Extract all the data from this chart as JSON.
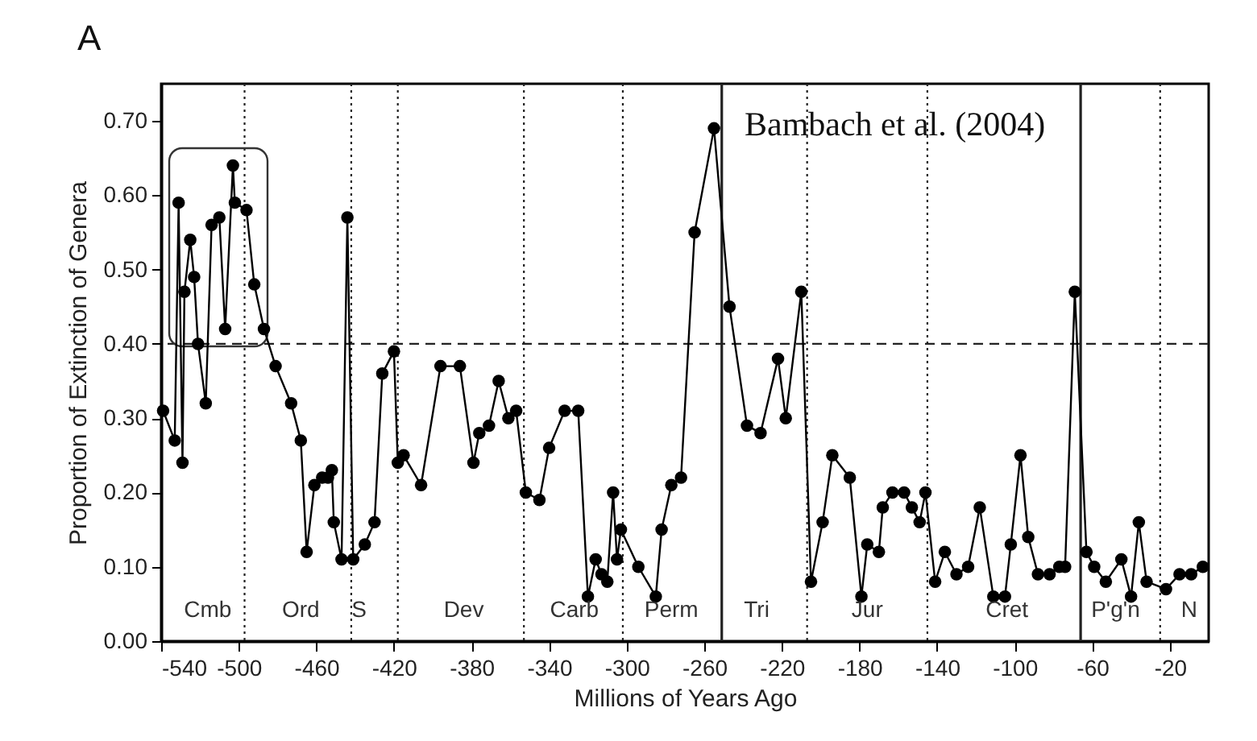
{
  "chart_data": {
    "type": "line",
    "xlabel": "Millions of Years Ago",
    "ylabel": "Proportion of Extinction of Genera",
    "xlim": [
      -540,
      0
    ],
    "xticks": [
      -540,
      -500,
      -460,
      -420,
      -380,
      -340,
      -300,
      -260,
      -220,
      -180,
      -140,
      -100,
      -60,
      -20
    ],
    "ylim": [
      0,
      0.75
    ],
    "yticks": [
      {
        "value": 0,
        "label": "0.00"
      },
      {
        "value": 0.1,
        "label": "0.10"
      },
      {
        "value": 0.2,
        "label": "0.20"
      },
      {
        "value": 0.3,
        "label": "0.30"
      },
      {
        "value": 0.4,
        "label": "0.40"
      },
      {
        "value": 0.5,
        "label": "0.50"
      },
      {
        "value": 0.6,
        "label": "0.60"
      },
      {
        "value": 0.7,
        "label": "0.70"
      }
    ],
    "marker": "circle",
    "line_style": "solid",
    "x": [
      -539,
      -533,
      -531,
      -529,
      -528,
      -525,
      -523,
      -521,
      -517,
      -514,
      -510,
      -507,
      -503,
      -502,
      -496,
      -492,
      -487,
      -481,
      -473,
      -468,
      -465,
      -461,
      -457,
      -454,
      -452,
      -451,
      -447,
      -444,
      -441,
      -435,
      -430,
      -426,
      -420,
      -418,
      -415,
      -406,
      -396,
      -386,
      -379,
      -376,
      -371,
      -366,
      -361,
      -357,
      -352,
      -345,
      -340,
      -332,
      -325,
      -320,
      -316,
      -313,
      -310,
      -307,
      -305,
      -303,
      -294,
      -285,
      -282,
      -277,
      -272,
      -265,
      -255,
      -247,
      -238,
      -231,
      -222,
      -218,
      -210,
      -205,
      -199,
      -194,
      -185,
      -179,
      -176,
      -170,
      -168,
      -163,
      -157,
      -153,
      -149,
      -146,
      -141,
      -136,
      -130,
      -124,
      -118,
      -111,
      -105,
      -102,
      -97,
      -93,
      -88,
      -82,
      -77,
      -74,
      -69,
      -63,
      -59,
      -53,
      -45,
      -40,
      -36,
      -32,
      -22,
      -15,
      -9,
      -3
    ],
    "series": [
      {
        "color": "#000000",
        "values": [
          0.31,
          0.27,
          0.59,
          0.24,
          0.47,
          0.54,
          0.49,
          0.4,
          0.32,
          0.56,
          0.57,
          0.42,
          0.64,
          0.59,
          0.58,
          0.48,
          0.42,
          0.37,
          0.32,
          0.27,
          0.12,
          0.21,
          0.22,
          0.22,
          0.23,
          0.16,
          0.11,
          0.57,
          0.11,
          0.13,
          0.16,
          0.36,
          0.39,
          0.24,
          0.25,
          0.21,
          0.37,
          0.37,
          0.24,
          0.28,
          0.29,
          0.35,
          0.3,
          0.31,
          0.2,
          0.19,
          0.26,
          0.31,
          0.31,
          0.06,
          0.11,
          0.09,
          0.08,
          0.2,
          0.11,
          0.15,
          0.1,
          0.06,
          0.15,
          0.21,
          0.22,
          0.55,
          0.69,
          0.45,
          0.29,
          0.28,
          0.38,
          0.3,
          0.47,
          0.08,
          0.16,
          0.25,
          0.22,
          0.06,
          0.13,
          0.12,
          0.18,
          0.2,
          0.2,
          0.18,
          0.16,
          0.2,
          0.08,
          0.12,
          0.09,
          0.1,
          0.18,
          0.06,
          0.06,
          0.13,
          0.25,
          0.14,
          0.09,
          0.09,
          0.1,
          0.1,
          0.47,
          0.12,
          0.1,
          0.08,
          0.11,
          0.06,
          0.16,
          0.08,
          0.07,
          0.09,
          0.09,
          0.1
        ]
      }
    ],
    "ref_lines": [
      {
        "axis": "y",
        "value": 0.4,
        "line_style": "dashed"
      },
      {
        "axis": "x",
        "value": -497,
        "line_style": "dotted"
      },
      {
        "axis": "x",
        "value": -442,
        "line_style": "dotted"
      },
      {
        "axis": "x",
        "value": -418,
        "line_style": "dotted"
      },
      {
        "axis": "x",
        "value": -353,
        "line_style": "dotted"
      },
      {
        "axis": "x",
        "value": -302,
        "line_style": "dotted"
      },
      {
        "axis": "x",
        "value": -251,
        "line_style": "solid"
      },
      {
        "axis": "x",
        "value": -207,
        "line_style": "dotted"
      },
      {
        "axis": "x",
        "value": -145,
        "line_style": "dotted"
      },
      {
        "axis": "x",
        "value": -66,
        "line_style": "solid"
      },
      {
        "axis": "x",
        "value": -25,
        "line_style": "dotted"
      }
    ],
    "annotations": [
      "A",
      "Bambach et al. (2004)",
      "Cmb",
      "Ord",
      "S",
      "Dev",
      "Carb",
      "Perm",
      "Tri",
      "Jur",
      "Cret",
      "P'g'n",
      "N"
    ]
  }
}
